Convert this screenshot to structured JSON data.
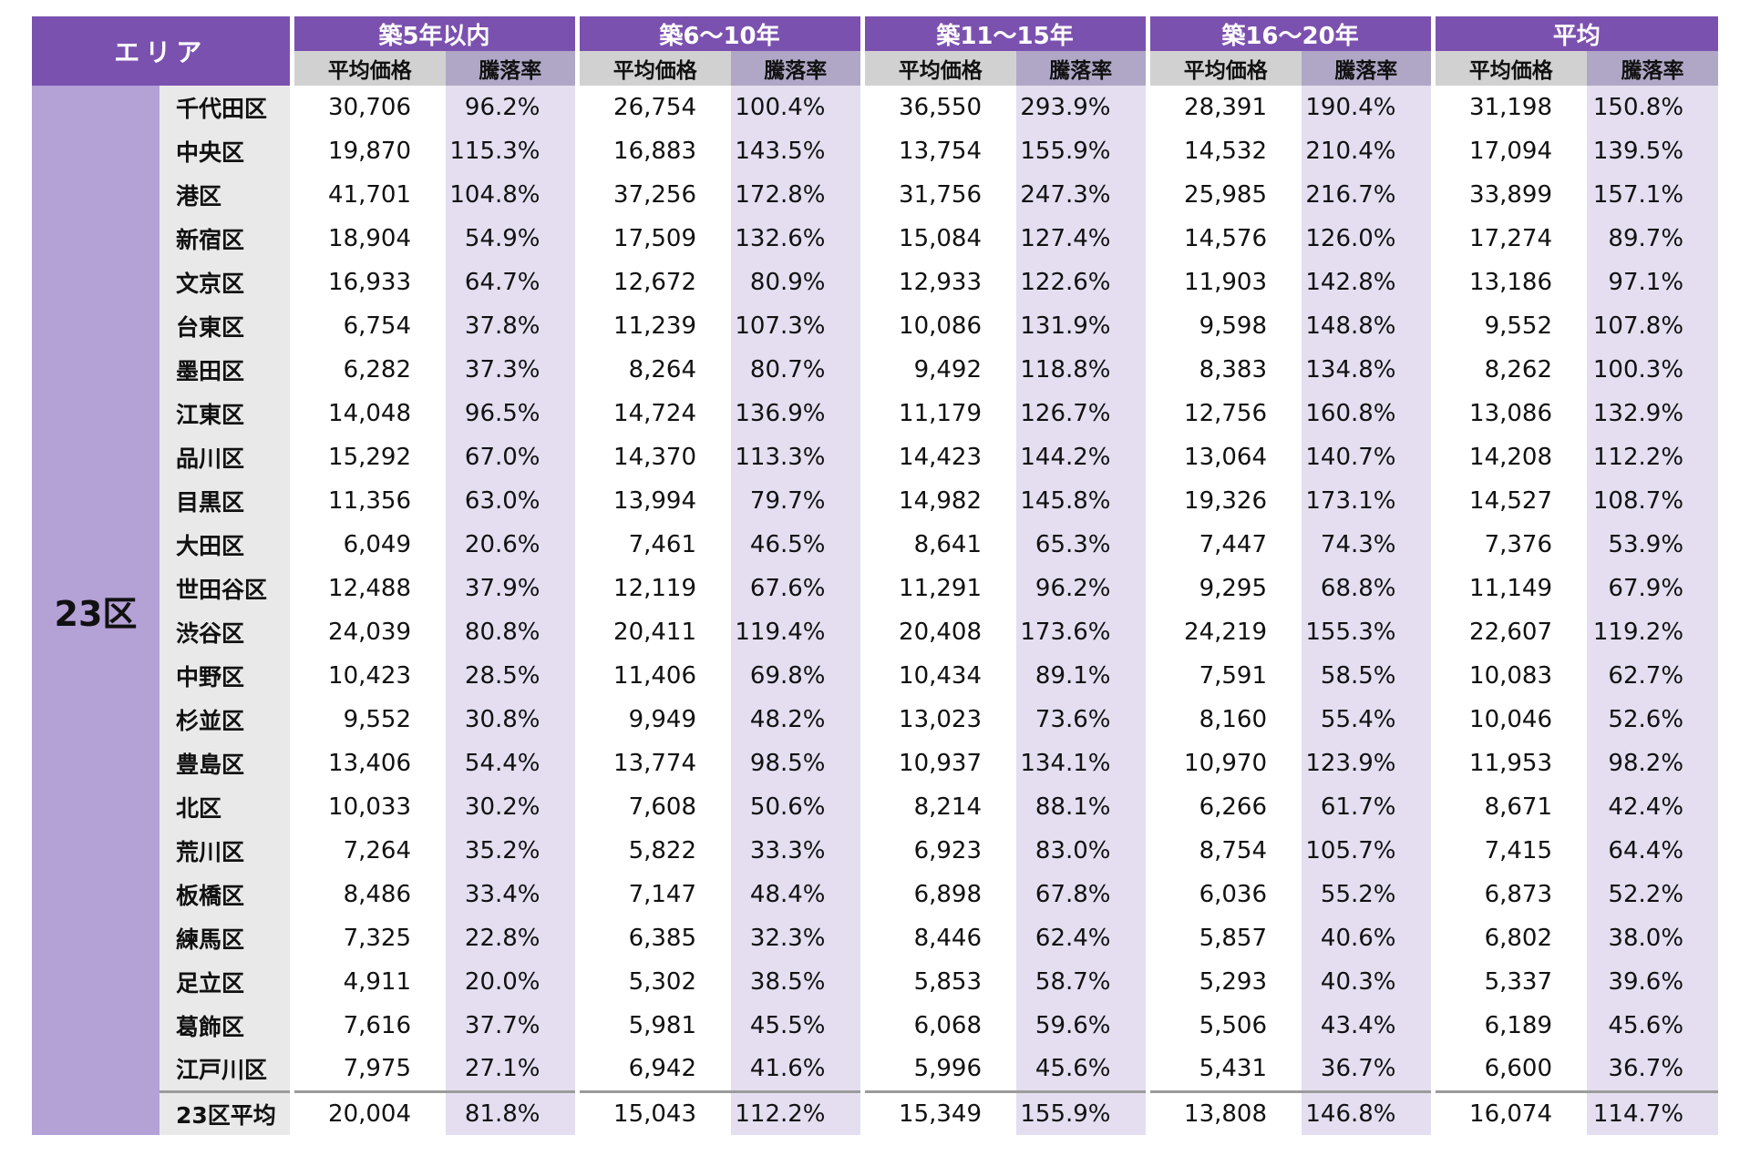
{
  "chart_data": {
    "type": "table",
    "area_header": "エリア",
    "row_group_label": "23区",
    "column_groups": [
      "築5年以内",
      "築6〜10年",
      "築11〜15年",
      "築16〜20年",
      "平均"
    ],
    "sub_columns": {
      "price": "平均価格",
      "rate": "騰落率"
    },
    "rows": [
      {
        "name": "千代田区",
        "values": [
          "30,706",
          "96.2%",
          "26,754",
          "100.4%",
          "36,550",
          "293.9%",
          "28,391",
          "190.4%",
          "31,198",
          "150.8%"
        ]
      },
      {
        "name": "中央区",
        "values": [
          "19,870",
          "115.3%",
          "16,883",
          "143.5%",
          "13,754",
          "155.9%",
          "14,532",
          "210.4%",
          "17,094",
          "139.5%"
        ]
      },
      {
        "name": "港区",
        "values": [
          "41,701",
          "104.8%",
          "37,256",
          "172.8%",
          "31,756",
          "247.3%",
          "25,985",
          "216.7%",
          "33,899",
          "157.1%"
        ]
      },
      {
        "name": "新宿区",
        "values": [
          "18,904",
          "54.9%",
          "17,509",
          "132.6%",
          "15,084",
          "127.4%",
          "14,576",
          "126.0%",
          "17,274",
          "89.7%"
        ]
      },
      {
        "name": "文京区",
        "values": [
          "16,933",
          "64.7%",
          "12,672",
          "80.9%",
          "12,933",
          "122.6%",
          "11,903",
          "142.8%",
          "13,186",
          "97.1%"
        ]
      },
      {
        "name": "台東区",
        "values": [
          "6,754",
          "37.8%",
          "11,239",
          "107.3%",
          "10,086",
          "131.9%",
          "9,598",
          "148.8%",
          "9,552",
          "107.8%"
        ]
      },
      {
        "name": "墨田区",
        "values": [
          "6,282",
          "37.3%",
          "8,264",
          "80.7%",
          "9,492",
          "118.8%",
          "8,383",
          "134.8%",
          "8,262",
          "100.3%"
        ]
      },
      {
        "name": "江東区",
        "values": [
          "14,048",
          "96.5%",
          "14,724",
          "136.9%",
          "11,179",
          "126.7%",
          "12,756",
          "160.8%",
          "13,086",
          "132.9%"
        ]
      },
      {
        "name": "品川区",
        "values": [
          "15,292",
          "67.0%",
          "14,370",
          "113.3%",
          "14,423",
          "144.2%",
          "13,064",
          "140.7%",
          "14,208",
          "112.2%"
        ]
      },
      {
        "name": "目黒区",
        "values": [
          "11,356",
          "63.0%",
          "13,994",
          "79.7%",
          "14,982",
          "145.8%",
          "19,326",
          "173.1%",
          "14,527",
          "108.7%"
        ]
      },
      {
        "name": "大田区",
        "values": [
          "6,049",
          "20.6%",
          "7,461",
          "46.5%",
          "8,641",
          "65.3%",
          "7,447",
          "74.3%",
          "7,376",
          "53.9%"
        ]
      },
      {
        "name": "世田谷区",
        "values": [
          "12,488",
          "37.9%",
          "12,119",
          "67.6%",
          "11,291",
          "96.2%",
          "9,295",
          "68.8%",
          "11,149",
          "67.9%"
        ]
      },
      {
        "name": "渋谷区",
        "values": [
          "24,039",
          "80.8%",
          "20,411",
          "119.4%",
          "20,408",
          "173.6%",
          "24,219",
          "155.3%",
          "22,607",
          "119.2%"
        ]
      },
      {
        "name": "中野区",
        "values": [
          "10,423",
          "28.5%",
          "11,406",
          "69.8%",
          "10,434",
          "89.1%",
          "7,591",
          "58.5%",
          "10,083",
          "62.7%"
        ]
      },
      {
        "name": "杉並区",
        "values": [
          "9,552",
          "30.8%",
          "9,949",
          "48.2%",
          "13,023",
          "73.6%",
          "8,160",
          "55.4%",
          "10,046",
          "52.6%"
        ]
      },
      {
        "name": "豊島区",
        "values": [
          "13,406",
          "54.4%",
          "13,774",
          "98.5%",
          "10,937",
          "134.1%",
          "10,970",
          "123.9%",
          "11,953",
          "98.2%"
        ]
      },
      {
        "name": "北区",
        "values": [
          "10,033",
          "30.2%",
          "7,608",
          "50.6%",
          "8,214",
          "88.1%",
          "6,266",
          "61.7%",
          "8,671",
          "42.4%"
        ]
      },
      {
        "name": "荒川区",
        "values": [
          "7,264",
          "35.2%",
          "5,822",
          "33.3%",
          "6,923",
          "83.0%",
          "8,754",
          "105.7%",
          "7,415",
          "64.4%"
        ]
      },
      {
        "name": "板橋区",
        "values": [
          "8,486",
          "33.4%",
          "7,147",
          "48.4%",
          "6,898",
          "67.8%",
          "6,036",
          "55.2%",
          "6,873",
          "52.2%"
        ]
      },
      {
        "name": "練馬区",
        "values": [
          "7,325",
          "22.8%",
          "6,385",
          "32.3%",
          "8,446",
          "62.4%",
          "5,857",
          "40.6%",
          "6,802",
          "38.0%"
        ]
      },
      {
        "name": "足立区",
        "values": [
          "4,911",
          "20.0%",
          "5,302",
          "38.5%",
          "5,853",
          "58.7%",
          "5,293",
          "40.3%",
          "5,337",
          "39.6%"
        ]
      },
      {
        "name": "葛飾区",
        "values": [
          "7,616",
          "37.7%",
          "5,981",
          "45.5%",
          "6,068",
          "59.6%",
          "5,506",
          "43.4%",
          "6,189",
          "45.6%"
        ]
      },
      {
        "name": "江戸川区",
        "values": [
          "7,975",
          "27.1%",
          "6,942",
          "41.6%",
          "5,996",
          "45.6%",
          "5,431",
          "36.7%",
          "6,600",
          "36.7%"
        ]
      }
    ],
    "summary_row": {
      "name": "23区平均",
      "values": [
        "20,004",
        "81.8%",
        "15,043",
        "112.2%",
        "15,349",
        "155.9%",
        "13,808",
        "146.8%",
        "16,074",
        "114.7%"
      ]
    }
  },
  "colors": {
    "header_purple": "#7B51AF",
    "row_group_purple": "#B4A1D6",
    "subheader_gray": "#D2D1D1",
    "subheader_mauve": "#B0A7C6",
    "ward_column_gray": "#E9E9E9",
    "rate_column_lavender": "#E4DEF0",
    "summary_separator_gray": "#9B9B9B",
    "text_black": "#111111",
    "header_text_white": "#FFFFFF"
  }
}
